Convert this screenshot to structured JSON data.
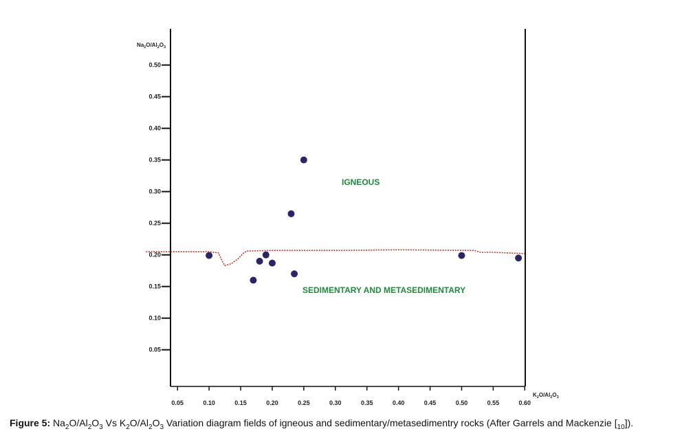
{
  "chart_data": {
    "type": "scatter",
    "title": "",
    "xlabel": "K2O/Al2O3",
    "ylabel": "Na2O/Al2O3",
    "xlim": [
      0.0,
      0.6
    ],
    "ylim": [
      0.0,
      0.55
    ],
    "x_ticks": [
      0.05,
      0.1,
      0.15,
      0.2,
      0.25,
      0.3,
      0.35,
      0.4,
      0.45,
      0.5,
      0.55,
      0.6
    ],
    "x_tick_labels": [
      "0.05",
      "0.10",
      "0.15",
      "0.20",
      "0.25",
      "0.30",
      "0.35",
      "0.40",
      "0.45",
      "0.50",
      "0.55",
      "0.60"
    ],
    "y_ticks": [
      0.05,
      0.1,
      0.15,
      0.2,
      0.25,
      0.3,
      0.35,
      0.4,
      0.45,
      0.5
    ],
    "y_tick_labels": [
      "0.05",
      "0.10",
      "0.15",
      "0.20",
      "0.25",
      "0.30",
      "0.35",
      "0.40",
      "0.45",
      "0.50"
    ],
    "grid": false,
    "series": [
      {
        "x": [
          0.25,
          0.23,
          0.1,
          0.18,
          0.19,
          0.2,
          0.17,
          0.235,
          0.5,
          0.59
        ],
        "y": [
          0.35,
          0.265,
          0.199,
          0.19,
          0.2,
          0.187,
          0.16,
          0.17,
          0.199,
          0.195
        ],
        "color": "#2b2568"
      }
    ],
    "boundary_line": {
      "style": "dotted",
      "color": "#c0392b",
      "x": [
        0.0,
        0.1,
        0.115,
        0.118,
        0.122,
        0.125,
        0.135,
        0.145,
        0.155,
        0.16,
        0.2,
        0.3,
        0.4,
        0.52,
        0.53,
        0.55,
        0.6
      ],
      "y": [
        0.205,
        0.205,
        0.203,
        0.196,
        0.188,
        0.183,
        0.186,
        0.193,
        0.203,
        0.206,
        0.207,
        0.207,
        0.208,
        0.207,
        0.204,
        0.204,
        0.202
      ]
    },
    "annotations": [
      {
        "text": "IGNEOUS",
        "x": 0.32,
        "y": 0.31
      },
      {
        "text": "SEDIMENTARY AND METASEDIMENTARY",
        "x": 0.32,
        "y": 0.145
      }
    ]
  },
  "caption": {
    "prefix": "Figure 5:",
    "text": "Na2O/Al2O3 Vs K2O/Al2O3 Variation diagram fields of igneous and sedimentary/metasedimentry rocks (After Garrels and Mackenzie [10])."
  }
}
